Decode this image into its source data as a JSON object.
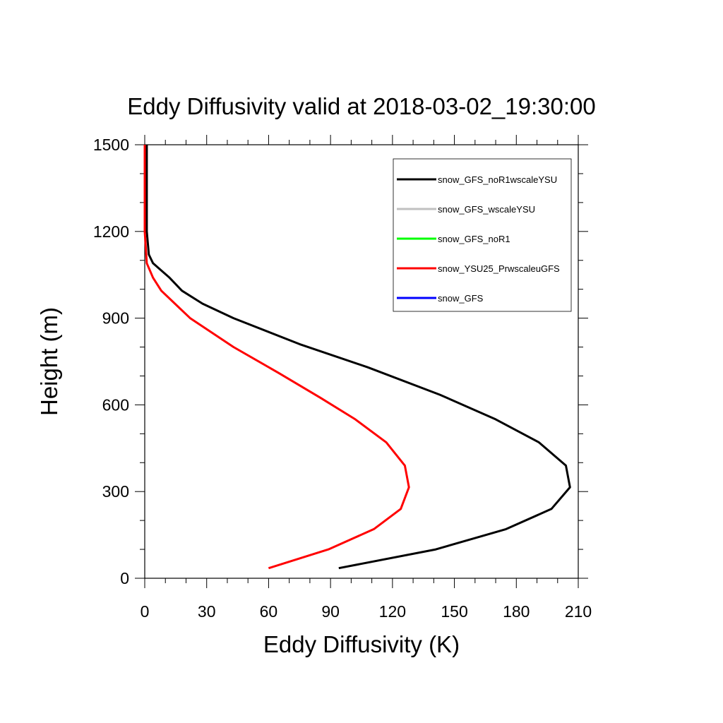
{
  "chart_data": {
    "type": "line",
    "title": "Eddy Diffusivity valid at 2018-03-02_19:30:00",
    "xlabel": "Eddy Diffusivity (K)",
    "ylabel": "Height (m)",
    "xlim": [
      0,
      210
    ],
    "ylim": [
      0,
      1500
    ],
    "xticks": [
      0,
      30,
      60,
      90,
      120,
      150,
      180,
      210
    ],
    "yticks": [
      0,
      300,
      600,
      900,
      1200,
      1500
    ],
    "grid": false,
    "legend_position": "top-right",
    "series": [
      {
        "name": "snow_GFS_noR1wscaleYSU",
        "color": "#000000",
        "points": [
          [
            94,
            35
          ],
          [
            141,
            100
          ],
          [
            175,
            170
          ],
          [
            197,
            240
          ],
          [
            206,
            315
          ],
          [
            204,
            390
          ],
          [
            191,
            470
          ],
          [
            170,
            550
          ],
          [
            143,
            635
          ],
          [
            108,
            730
          ],
          [
            75,
            810
          ],
          [
            43,
            900
          ],
          [
            28,
            950
          ],
          [
            18,
            995
          ],
          [
            12,
            1040
          ],
          [
            4,
            1090
          ],
          [
            2,
            1120
          ],
          [
            1,
            1200
          ],
          [
            1,
            1300
          ],
          [
            1,
            1400
          ],
          [
            1,
            1500
          ]
        ]
      },
      {
        "name": "snow_GFS_wscaleYSU",
        "color": "#c0c0c0",
        "points": []
      },
      {
        "name": "snow_GFS_noR1",
        "color": "#00ff00",
        "points": []
      },
      {
        "name": "snow_YSU25_PrwscaleuGFS",
        "color": "#ff0000",
        "points": [
          [
            60,
            35
          ],
          [
            89,
            100
          ],
          [
            111,
            170
          ],
          [
            124,
            240
          ],
          [
            128,
            315
          ],
          [
            126,
            390
          ],
          [
            117,
            470
          ],
          [
            102,
            550
          ],
          [
            85,
            625
          ],
          [
            65,
            710
          ],
          [
            43,
            800
          ],
          [
            22,
            900
          ],
          [
            8,
            995
          ],
          [
            4,
            1040
          ],
          [
            1,
            1090
          ],
          [
            0,
            1200
          ],
          [
            0,
            1300
          ],
          [
            0,
            1500
          ]
        ]
      },
      {
        "name": "snow_GFS",
        "color": "#0000ff",
        "points": []
      }
    ]
  }
}
